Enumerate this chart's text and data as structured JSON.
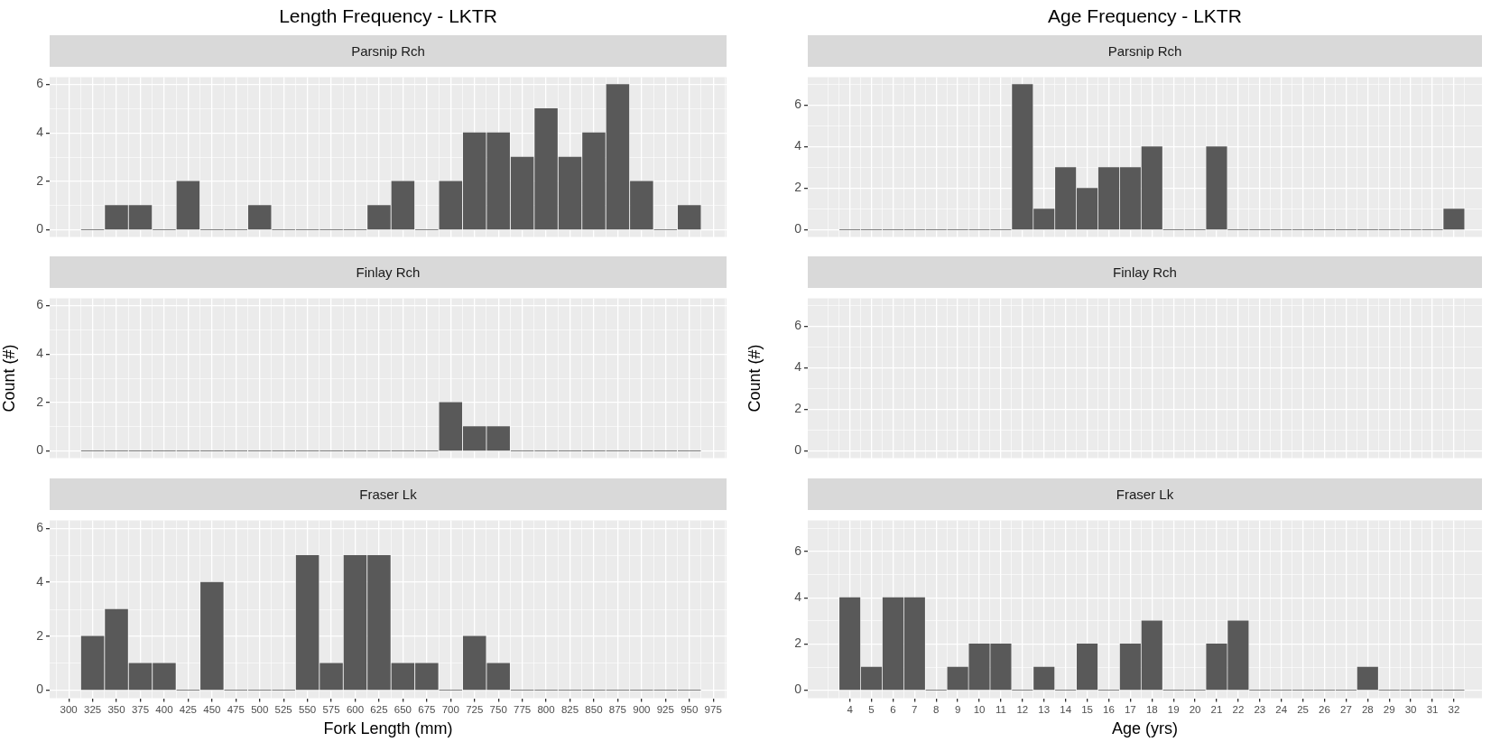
{
  "chart_data": [
    {
      "type": "histogram",
      "title": "Length Frequency - LKTR",
      "subtitle": "Parsnip Rch",
      "bins": [
        312.5,
        337.5,
        362.5,
        387.5,
        412.5,
        437.5,
        462.5,
        487.5,
        512.5,
        537.5,
        562.5,
        587.5,
        612.5,
        637.5,
        662.5,
        687.5,
        712.5,
        737.5,
        762.5,
        787.5,
        812.5,
        837.5,
        862.5,
        887.5,
        912.5,
        937.5,
        962.5
      ],
      "values": [
        0,
        1,
        1,
        0,
        2,
        0,
        0,
        1,
        0,
        0,
        0,
        0,
        1,
        2,
        0,
        2,
        4,
        4,
        3,
        5,
        3,
        4,
        6,
        2,
        0,
        1
      ],
      "color": "#595959",
      "xlim": [
        280,
        989
      ],
      "xticks": [
        300,
        325,
        350,
        375,
        400,
        425,
        450,
        475,
        500,
        525,
        550,
        575,
        600,
        625,
        650,
        675,
        700,
        725,
        750,
        775,
        800,
        825,
        850,
        875,
        900,
        925,
        950,
        975
      ],
      "ylim": [
        -0.3,
        6.3
      ],
      "yticks": [
        0,
        2,
        4,
        6
      ],
      "grid": true,
      "tick_labels": "y"
    },
    {
      "type": "histogram",
      "subtitle": "Finlay Rch",
      "ylabel": "Count (#)",
      "bins": [
        312.5,
        337.5,
        362.5,
        387.5,
        412.5,
        437.5,
        462.5,
        487.5,
        512.5,
        537.5,
        562.5,
        587.5,
        612.5,
        637.5,
        662.5,
        687.5,
        712.5,
        737.5,
        762.5,
        787.5,
        812.5,
        837.5,
        862.5,
        887.5,
        912.5,
        937.5,
        962.5
      ],
      "values": [
        0,
        0,
        0,
        0,
        0,
        0,
        0,
        0,
        0,
        0,
        0,
        0,
        0,
        0,
        0,
        2,
        1,
        1,
        0,
        0,
        0,
        0,
        0,
        0,
        0,
        0
      ],
      "color": "#595959",
      "xlim": [
        280,
        989
      ],
      "xticks": [
        300,
        325,
        350,
        375,
        400,
        425,
        450,
        475,
        500,
        525,
        550,
        575,
        600,
        625,
        650,
        675,
        700,
        725,
        750,
        775,
        800,
        825,
        850,
        875,
        900,
        925,
        950,
        975
      ],
      "ylim": [
        -0.3,
        6.3
      ],
      "yticks": [
        0,
        2,
        4,
        6
      ],
      "grid": true,
      "tick_labels": "y"
    },
    {
      "type": "histogram",
      "subtitle": "Fraser Lk",
      "xlabel": "Fork Length (mm)",
      "bins": [
        312.5,
        337.5,
        362.5,
        387.5,
        412.5,
        437.5,
        462.5,
        487.5,
        512.5,
        537.5,
        562.5,
        587.5,
        612.5,
        637.5,
        662.5,
        687.5,
        712.5,
        737.5,
        762.5,
        787.5,
        812.5,
        837.5,
        862.5,
        887.5,
        912.5,
        937.5,
        962.5
      ],
      "values": [
        2,
        3,
        1,
        1,
        0,
        4,
        0,
        0,
        0,
        5,
        1,
        5,
        5,
        1,
        1,
        0,
        2,
        1,
        0,
        0,
        0,
        0,
        0,
        0,
        0,
        0
      ],
      "color": "#595959",
      "xlim": [
        280,
        989
      ],
      "xticks": [
        300,
        325,
        350,
        375,
        400,
        425,
        450,
        475,
        500,
        525,
        550,
        575,
        600,
        625,
        650,
        675,
        700,
        725,
        750,
        775,
        800,
        825,
        850,
        875,
        900,
        925,
        950,
        975
      ],
      "ylim": [
        -0.3,
        6.3
      ],
      "yticks": [
        0,
        2,
        4,
        6
      ],
      "grid": true
    },
    {
      "type": "histogram",
      "title": "Age Frequency - LKTR",
      "subtitle": "Parsnip Rch",
      "bins": [
        3.5,
        4.5,
        5.5,
        6.5,
        7.5,
        8.5,
        9.5,
        10.5,
        11.5,
        12.5,
        13.5,
        14.5,
        15.5,
        16.5,
        17.5,
        18.5,
        19.5,
        20.5,
        21.5,
        22.5,
        23.5,
        24.5,
        25.5,
        26.5,
        27.5,
        28.5,
        29.5,
        30.5,
        31.5,
        32.5
      ],
      "values": [
        0,
        0,
        0,
        0,
        0,
        0,
        0,
        0,
        7,
        1,
        3,
        2,
        3,
        3,
        4,
        0,
        0,
        4,
        0,
        0,
        0,
        0,
        0,
        0,
        0,
        0,
        0,
        0,
        1
      ],
      "color": "#595959",
      "xlim": [
        2.05,
        33.3
      ],
      "xticks": [
        4,
        5,
        6,
        7,
        8,
        9,
        10,
        11,
        12,
        13,
        14,
        15,
        16,
        17,
        18,
        19,
        20,
        21,
        22,
        23,
        24,
        25,
        26,
        27,
        28,
        29,
        30,
        31,
        32
      ],
      "ylim": [
        -0.35,
        7.35
      ],
      "yticks": [
        0,
        2,
        4,
        6
      ],
      "grid": true,
      "tick_labels": "y"
    },
    {
      "type": "histogram",
      "subtitle": "Finlay Rch",
      "ylabel": "Count (#)",
      "xlim": [
        2.05,
        33.3
      ],
      "xticks": [
        4,
        5,
        6,
        7,
        8,
        9,
        10,
        11,
        12,
        13,
        14,
        15,
        16,
        17,
        18,
        19,
        20,
        21,
        22,
        23,
        24,
        25,
        26,
        27,
        28,
        29,
        30,
        31,
        32
      ],
      "ylim": [
        -0.35,
        7.35
      ],
      "yticks": [
        0,
        2,
        4,
        6
      ],
      "grid": true,
      "tick_labels": "y"
    },
    {
      "type": "histogram",
      "subtitle": "Fraser Lk",
      "xlabel": "Age (yrs)",
      "bins": [
        3.5,
        4.5,
        5.5,
        6.5,
        7.5,
        8.5,
        9.5,
        10.5,
        11.5,
        12.5,
        13.5,
        14.5,
        15.5,
        16.5,
        17.5,
        18.5,
        19.5,
        20.5,
        21.5,
        22.5,
        23.5,
        24.5,
        25.5,
        26.5,
        27.5,
        28.5,
        29.5,
        30.5,
        31.5,
        32.5
      ],
      "values": [
        4,
        1,
        4,
        4,
        0,
        1,
        2,
        2,
        0,
        1,
        0,
        2,
        0,
        2,
        3,
        0,
        0,
        2,
        3,
        0,
        0,
        0,
        0,
        0,
        1,
        0,
        0,
        0,
        0
      ],
      "color": "#595959",
      "xlim": [
        2.05,
        33.3
      ],
      "xticks": [
        4,
        5,
        6,
        7,
        8,
        9,
        10,
        11,
        12,
        13,
        14,
        15,
        16,
        17,
        18,
        19,
        20,
        21,
        22,
        23,
        24,
        25,
        26,
        27,
        28,
        29,
        30,
        31,
        32
      ],
      "ylim": [
        -0.35,
        7.35
      ],
      "yticks": [
        0,
        2,
        4,
        6
      ],
      "grid": true
    }
  ]
}
